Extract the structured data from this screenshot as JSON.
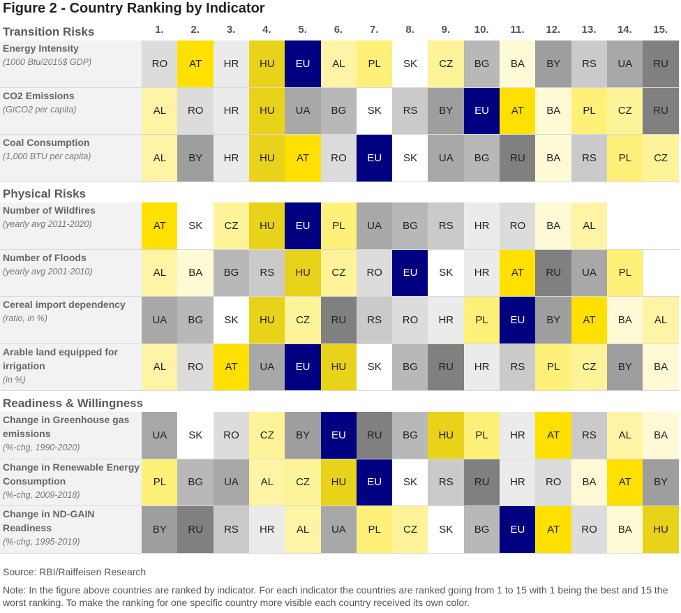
{
  "title": "Figure 2 - Country Ranking by Indicator",
  "source": "Source: RBI/Raiffeisen Research",
  "note": "Note: In the figure above countries are ranked by indicator. For each indicator the countries are ranked going from 1 to 15 with 1 being the best and 15 the worst ranking. To make the ranking for one specific country more visible each country received its own color.",
  "country_colors": {
    "RO": "#dcdcdc",
    "AT": "#ffe000",
    "HR": "#ebebeb",
    "HU": "#e8d21a",
    "EU": "#000080",
    "AL": "#fff3a6",
    "PL": "#fff07a",
    "SK": "#ffffff",
    "CZ": "#fff39a",
    "BG": "#b8b8b8",
    "BA": "#fffad6",
    "BY": "#9e9e9e",
    "RS": "#cacaca",
    "UA": "#a8a8a8",
    "RU": "#808080"
  },
  "chart_data": {
    "type": "table",
    "title": "Figure 2 - Country Ranking by Indicator",
    "rank_labels": [
      "1.",
      "2.",
      "3.",
      "4.",
      "5.",
      "6.",
      "7.",
      "8.",
      "9.",
      "10.",
      "11.",
      "12.",
      "13.",
      "14.",
      "15."
    ],
    "sections": [
      {
        "name": "Transition Risks",
        "indicators": [
          {
            "name": "Energy Intensity",
            "unit": "(1000 Btu/2015$ GDP)",
            "ranking": [
              "RO",
              "AT",
              "HR",
              "HU",
              "EU",
              "AL",
              "PL",
              "SK",
              "CZ",
              "BG",
              "BA",
              "BY",
              "RS",
              "UA",
              "RU"
            ]
          },
          {
            "name": "CO2 Emissions",
            "unit": "(GtCO2 per capita)",
            "ranking": [
              "AL",
              "RO",
              "HR",
              "HU",
              "UA",
              "BG",
              "SK",
              "RS",
              "BY",
              "EU",
              "AT",
              "BA",
              "PL",
              "CZ",
              "RU"
            ]
          },
          {
            "name": "Coal Consumption",
            "unit": "(1,000 BTU per capita)",
            "ranking": [
              "AL",
              "BY",
              "HR",
              "HU",
              "AT",
              "RO",
              "EU",
              "SK",
              "UA",
              "BG",
              "RU",
              "BA",
              "RS",
              "PL",
              "CZ"
            ]
          }
        ]
      },
      {
        "name": "Physical Risks",
        "indicators": [
          {
            "name": "Number of Wildfires",
            "unit": "(yearly avg 2011-2020)",
            "ranking": [
              "AT",
              "SK",
              "CZ",
              "HU",
              "EU",
              "PL",
              "UA",
              "BG",
              "RS",
              "HR",
              "RO",
              "BA",
              "AL"
            ]
          },
          {
            "name": "Number  of Floods",
            "unit": "(yearly avg 2001-2010)",
            "ranking": [
              "AL",
              "BA",
              "BG",
              "RS",
              "HU",
              "CZ",
              "RO",
              "EU",
              "SK",
              "HR",
              "AT",
              "RU",
              "UA",
              "PL"
            ]
          },
          {
            "name": "Cereal import dependency",
            "unit": "(ratio, in %)",
            "ranking": [
              "UA",
              "BG",
              "SK",
              "HU",
              "CZ",
              "RU",
              "RS",
              "RO",
              "HR",
              "PL",
              "EU",
              "BY",
              "AT",
              "BA",
              "AL"
            ]
          },
          {
            "name": "Arable land equipped for irrigation",
            "unit": "(in %)",
            "ranking": [
              "AL",
              "RO",
              "AT",
              "UA",
              "EU",
              "HU",
              "SK",
              "BG",
              "RU",
              "HR",
              "RS",
              "PL",
              "CZ",
              "BY",
              "BA"
            ]
          }
        ]
      },
      {
        "name": "Readiness & Willingness",
        "indicators": [
          {
            "name": "Change in Greenhouse gas emissions",
            "unit": "(%-chg, 1990-2020)",
            "ranking": [
              "UA",
              "SK",
              "RO",
              "CZ",
              "BY",
              "EU",
              "RU",
              "BG",
              "HU",
              "PL",
              "HR",
              "AT",
              "RS",
              "AL",
              "BA"
            ]
          },
          {
            "name": "Change in Renewable Energy Consumption",
            "unit": "(%-chg, 2009-2018)",
            "ranking": [
              "PL",
              "BG",
              "UA",
              "AL",
              "CZ",
              "HU",
              "EU",
              "SK",
              "RS",
              "RU",
              "HR",
              "RO",
              "BA",
              "AT",
              "BY"
            ]
          },
          {
            "name": "Change in ND-GAIN Readiness",
            "unit": "(%-chg, 1995-2019)",
            "ranking": [
              "BY",
              "RU",
              "RS",
              "HR",
              "AL",
              "UA",
              "PL",
              "CZ",
              "SK",
              "BG",
              "EU",
              "AT",
              "RO",
              "BA",
              "HU"
            ]
          }
        ]
      }
    ]
  }
}
